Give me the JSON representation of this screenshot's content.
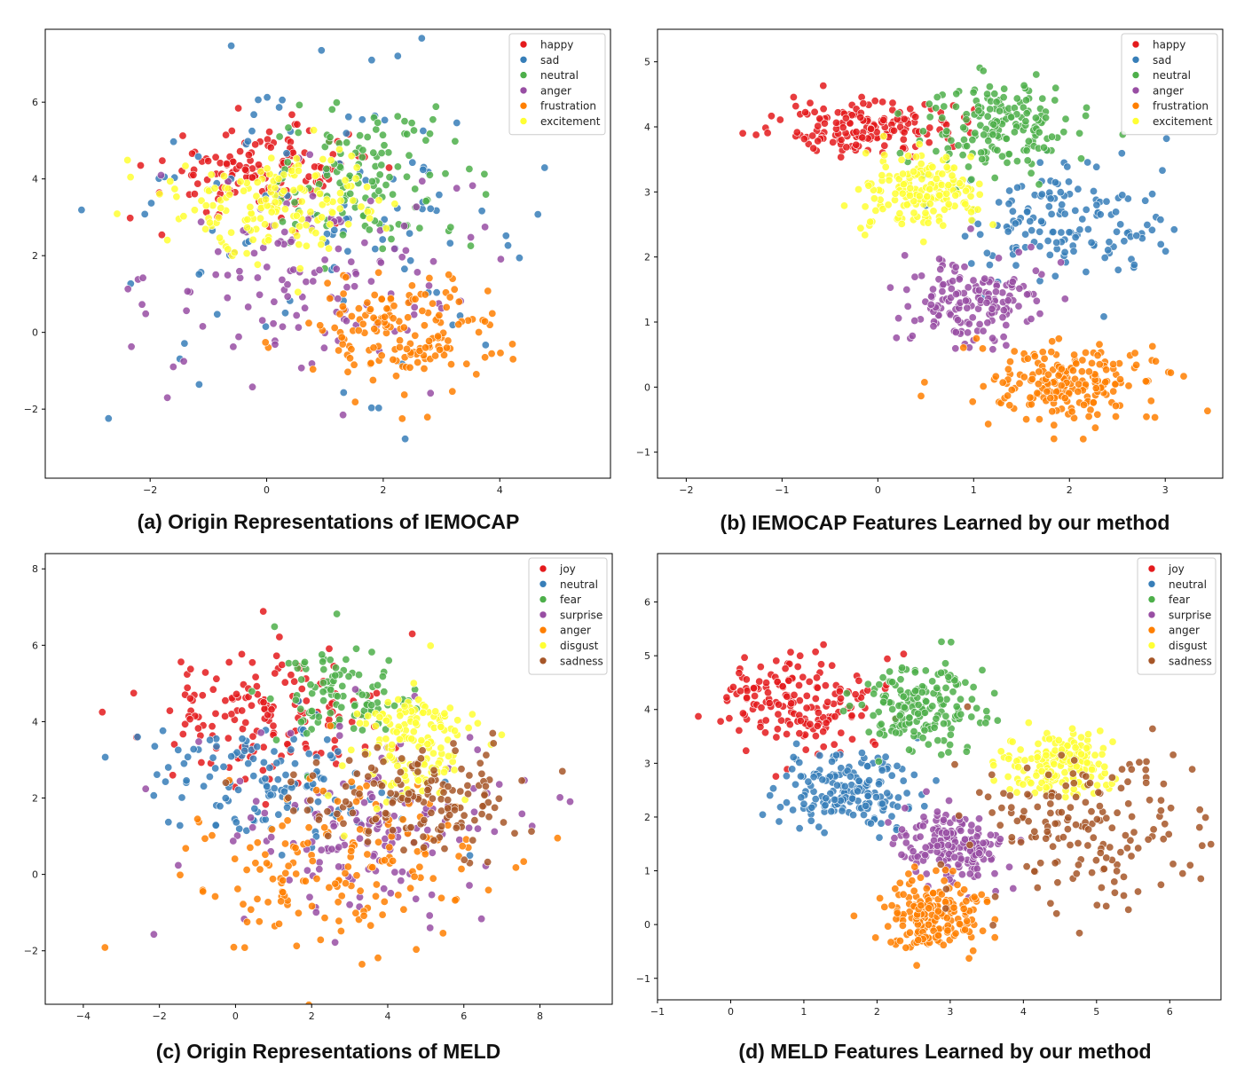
{
  "panels": [
    {
      "caption": "(a)  Origin Representations of IEMOCAP",
      "chart_data": {
        "type": "scatter",
        "title": "",
        "xlabel": "",
        "ylabel": "",
        "xlim": [
          -3.8,
          5.9
        ],
        "ylim": [
          -3.8,
          7.9
        ],
        "xticks": [
          -2,
          0,
          2,
          4
        ],
        "yticks": [
          -2,
          0,
          2,
          4,
          6
        ],
        "xtick_labels": [
          "−2",
          "0",
          "2",
          "4"
        ],
        "ytick_labels": [
          "−2",
          "0",
          "2",
          "4",
          "6"
        ],
        "legend_position": "top-right",
        "series": [
          {
            "name": "happy",
            "color": "#e41a1c",
            "cluster": {
              "cx": 0.0,
              "cy": 4.2,
              "sx": 0.9,
              "sy": 0.6,
              "n": 140
            }
          },
          {
            "name": "sad",
            "color": "#377eb8",
            "cluster": {
              "cx": 0.8,
              "cy": 3.2,
              "sx": 1.8,
              "sy": 1.9,
              "n": 110
            }
          },
          {
            "name": "neutral",
            "color": "#4daf4a",
            "cluster": {
              "cx": 1.8,
              "cy": 4.0,
              "sx": 0.9,
              "sy": 0.9,
              "n": 120
            }
          },
          {
            "name": "anger",
            "color": "#984ea3",
            "cluster": {
              "cx": 0.7,
              "cy": 1.5,
              "sx": 1.3,
              "sy": 1.4,
              "n": 130
            }
          },
          {
            "name": "frustration",
            "color": "#ff7f00",
            "cluster": {
              "cx": 2.3,
              "cy": 0.0,
              "sx": 0.9,
              "sy": 0.75,
              "n": 160
            }
          },
          {
            "name": "excitement",
            "color": "#ffff33",
            "cluster": {
              "cx": 0.3,
              "cy": 3.4,
              "sx": 0.9,
              "sy": 0.7,
              "n": 160
            }
          }
        ]
      }
    },
    {
      "caption": "(b)  IEMOCAP Features Learned by our method",
      "chart_data": {
        "type": "scatter",
        "title": "",
        "xlabel": "",
        "ylabel": "",
        "xlim": [
          -2.3,
          3.6
        ],
        "ylim": [
          -1.4,
          5.5
        ],
        "xticks": [
          -2,
          -1,
          0,
          1,
          2,
          3
        ],
        "yticks": [
          -1,
          0,
          1,
          2,
          3,
          4,
          5
        ],
        "xtick_labels": [
          "−2",
          "−1",
          "0",
          "1",
          "2",
          "3"
        ],
        "ytick_labels": [
          "−1",
          "0",
          "1",
          "2",
          "3",
          "4",
          "5"
        ],
        "legend_position": "top-right",
        "series": [
          {
            "name": "happy",
            "color": "#e41a1c",
            "cluster": {
              "cx": -0.1,
              "cy": 4.0,
              "sx": 0.45,
              "sy": 0.2,
              "n": 170
            }
          },
          {
            "name": "sad",
            "color": "#377eb8",
            "cluster": {
              "cx": 1.9,
              "cy": 2.6,
              "sx": 0.55,
              "sy": 0.5,
              "n": 150
            }
          },
          {
            "name": "neutral",
            "color": "#4daf4a",
            "cluster": {
              "cx": 1.3,
              "cy": 4.0,
              "sx": 0.4,
              "sy": 0.35,
              "n": 170
            }
          },
          {
            "name": "anger",
            "color": "#984ea3",
            "cluster": {
              "cx": 1.0,
              "cy": 1.3,
              "sx": 0.35,
              "sy": 0.35,
              "n": 160
            }
          },
          {
            "name": "frustration",
            "color": "#ff7f00",
            "cluster": {
              "cx": 2.0,
              "cy": 0.05,
              "sx": 0.45,
              "sy": 0.3,
              "n": 200
            }
          },
          {
            "name": "excitement",
            "color": "#ffff33",
            "cluster": {
              "cx": 0.45,
              "cy": 3.0,
              "sx": 0.3,
              "sy": 0.3,
              "n": 170
            }
          }
        ]
      }
    },
    {
      "caption": "(c)  Origin Representations of MELD",
      "chart_data": {
        "type": "scatter",
        "title": "",
        "xlabel": "",
        "ylabel": "",
        "xlim": [
          -5.0,
          9.9
        ],
        "ylim": [
          -3.4,
          8.4
        ],
        "xticks": [
          -4,
          -2,
          0,
          2,
          4,
          6,
          8
        ],
        "yticks": [
          -2,
          0,
          2,
          4,
          6,
          8
        ],
        "xtick_labels": [
          "−4",
          "−2",
          "0",
          "2",
          "4",
          "6",
          "8"
        ],
        "ytick_labels": [
          "−2",
          "0",
          "2",
          "4",
          "6",
          "8"
        ],
        "legend_position": "top-right",
        "series": [
          {
            "name": "joy",
            "color": "#e41a1c",
            "cluster": {
              "cx": 0.8,
              "cy": 4.2,
              "sx": 1.6,
              "sy": 0.9,
              "n": 150
            }
          },
          {
            "name": "neutral",
            "color": "#377eb8",
            "cluster": {
              "cx": 1.0,
              "cy": 2.4,
              "sx": 1.6,
              "sy": 0.8,
              "n": 140
            }
          },
          {
            "name": "fear",
            "color": "#4daf4a",
            "cluster": {
              "cx": 2.8,
              "cy": 4.6,
              "sx": 0.9,
              "sy": 0.7,
              "n": 100
            }
          },
          {
            "name": "surprise",
            "color": "#984ea3",
            "cluster": {
              "cx": 3.5,
              "cy": 1.2,
              "sx": 2.0,
              "sy": 1.3,
              "n": 150
            }
          },
          {
            "name": "anger",
            "color": "#ff7f00",
            "cluster": {
              "cx": 3.0,
              "cy": 0.2,
              "sx": 1.9,
              "sy": 1.1,
              "n": 170
            }
          },
          {
            "name": "disgust",
            "color": "#ffff33",
            "cluster": {
              "cx": 4.6,
              "cy": 3.3,
              "sx": 0.8,
              "sy": 0.8,
              "n": 150
            }
          },
          {
            "name": "sadness",
            "color": "#a65628",
            "cluster": {
              "cx": 4.8,
              "cy": 2.0,
              "sx": 1.5,
              "sy": 0.7,
              "n": 150
            }
          }
        ]
      }
    },
    {
      "caption": "(d)  MELD Features Learned by our method",
      "chart_data": {
        "type": "scatter",
        "title": "",
        "xlabel": "",
        "ylabel": "",
        "xlim": [
          -1.0,
          6.7
        ],
        "ylim": [
          -1.4,
          6.9
        ],
        "xticks": [
          -1,
          0,
          1,
          2,
          3,
          4,
          5,
          6
        ],
        "yticks": [
          -1,
          0,
          1,
          2,
          3,
          4,
          5,
          6
        ],
        "xtick_labels": [
          "−1",
          "0",
          "1",
          "2",
          "3",
          "4",
          "5",
          "6"
        ],
        "ytick_labels": [
          "−1",
          "0",
          "1",
          "2",
          "3",
          "4",
          "5",
          "6"
        ],
        "legend_position": "top-right",
        "series": [
          {
            "name": "joy",
            "color": "#e41a1c",
            "cluster": {
              "cx": 0.9,
              "cy": 4.1,
              "sx": 0.5,
              "sy": 0.5,
              "n": 170
            }
          },
          {
            "name": "neutral",
            "color": "#377eb8",
            "cluster": {
              "cx": 1.6,
              "cy": 2.5,
              "sx": 0.45,
              "sy": 0.35,
              "n": 180
            }
          },
          {
            "name": "fear",
            "color": "#4daf4a",
            "cluster": {
              "cx": 2.6,
              "cy": 4.1,
              "sx": 0.45,
              "sy": 0.4,
              "n": 170
            }
          },
          {
            "name": "surprise",
            "color": "#984ea3",
            "cluster": {
              "cx": 3.0,
              "cy": 1.5,
              "sx": 0.35,
              "sy": 0.35,
              "n": 170
            }
          },
          {
            "name": "anger",
            "color": "#ff7f00",
            "cluster": {
              "cx": 2.8,
              "cy": 0.2,
              "sx": 0.35,
              "sy": 0.35,
              "n": 190
            }
          },
          {
            "name": "disgust",
            "color": "#ffff33",
            "cluster": {
              "cx": 4.5,
              "cy": 3.0,
              "sx": 0.35,
              "sy": 0.3,
              "n": 170
            }
          },
          {
            "name": "sadness",
            "color": "#a65628",
            "cluster": {
              "cx": 4.8,
              "cy": 1.8,
              "sx": 0.75,
              "sy": 0.75,
              "n": 170
            }
          }
        ]
      }
    }
  ]
}
